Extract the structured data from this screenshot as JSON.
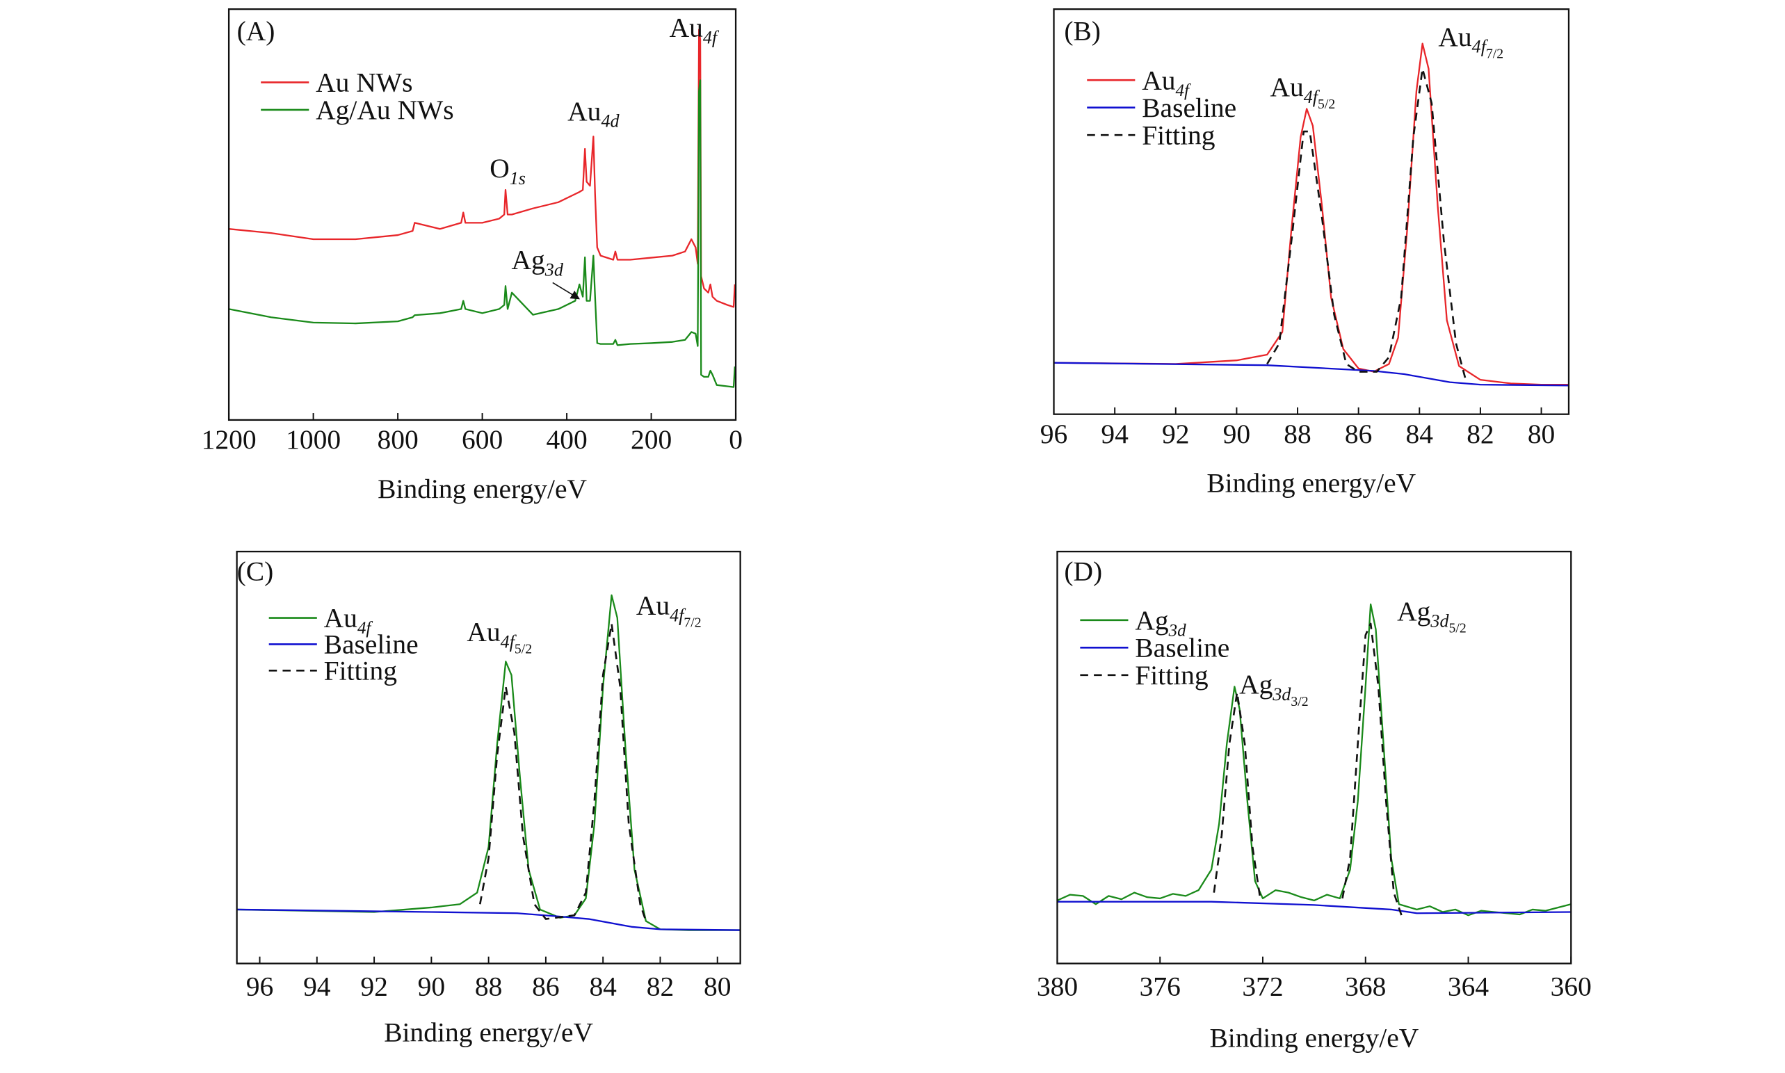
{
  "chart_data": [
    {
      "type": "line",
      "x_label": "Binding energy/eV",
      "xlim": [
        1200,
        0
      ],
      "xticks": [
        1200,
        1000,
        800,
        600,
        400,
        200,
        0
      ],
      "ylim": [
        0,
        100
      ],
      "annotations": [
        {
          "text": "(A)"
        },
        {
          "text": "Au",
          "sub": "4f"
        },
        {
          "text": "Au",
          "sub": "4d"
        },
        {
          "text": "O",
          "sub": "1s"
        },
        {
          "text": "Ag",
          "sub": "3d"
        }
      ],
      "series": [
        {
          "name": "Au NWs",
          "color": "#e8262a",
          "line_style": "solid",
          "x": [
            1200,
            1100,
            1000,
            900,
            800,
            765,
            760,
            700,
            650,
            645,
            640,
            600,
            560,
            548,
            545,
            540,
            530,
            480,
            420,
            380,
            370,
            362,
            357,
            353,
            345,
            337,
            333,
            328,
            320,
            290,
            285,
            280,
            250,
            200,
            150,
            120,
            105,
            95,
            90,
            87,
            84,
            82,
            75,
            65,
            60,
            55,
            45,
            20,
            5,
            2
          ],
          "values": [
            46.5,
            45.5,
            44,
            44,
            45,
            46,
            48,
            46.5,
            48,
            50.5,
            48,
            48,
            49,
            50,
            56,
            50,
            50,
            51.5,
            53,
            55,
            55.5,
            56,
            66,
            58,
            57,
            69,
            55,
            42,
            40,
            39,
            41,
            39,
            39,
            39.5,
            40,
            41,
            44,
            42,
            38,
            95,
            92.5,
            35,
            32,
            31,
            33,
            30,
            29,
            28,
            27.5,
            33
          ]
        },
        {
          "name": "Ag/Au NWs",
          "color": "#1a8a1a",
          "line_style": "solid",
          "x": [
            1200,
            1100,
            1000,
            900,
            800,
            765,
            760,
            700,
            650,
            645,
            640,
            600,
            560,
            548,
            545,
            540,
            530,
            480,
            420,
            380,
            370,
            362,
            357,
            353,
            345,
            337,
            333,
            328,
            320,
            290,
            285,
            280,
            250,
            200,
            150,
            120,
            105,
            95,
            90,
            87,
            84,
            82,
            75,
            65,
            60,
            55,
            45,
            20,
            5,
            2
          ],
          "values": [
            27,
            25,
            23.7,
            23.5,
            24,
            25,
            25.5,
            26,
            27,
            29,
            27,
            26,
            27,
            28,
            32.6,
            27,
            31,
            25.6,
            27,
            29,
            33,
            30,
            39.6,
            29,
            29,
            40,
            30,
            18.7,
            18.5,
            18.5,
            19.5,
            18.2,
            18.5,
            18.7,
            19,
            19.5,
            21.4,
            21,
            18,
            80,
            82.7,
            11,
            10.5,
            10.5,
            12,
            11,
            8.5,
            8.2,
            8,
            13
          ]
        }
      ]
    },
    {
      "type": "line",
      "x_label": "Binding energy/eV",
      "xlim": [
        96,
        79.1
      ],
      "xticks": [
        96,
        94,
        92,
        90,
        88,
        86,
        84,
        82,
        80
      ],
      "ylim": [
        0,
        100
      ],
      "annotations": [
        {
          "text": "(B)"
        },
        {
          "text": "Au",
          "sub": "4f",
          "sub2": "5/2"
        },
        {
          "text": "Au",
          "sub": "4f",
          "sub2": "7/2"
        }
      ],
      "series": [
        {
          "name": "Au",
          "name_sub": "4f",
          "color": "#e8262a",
          "line_style": "solid",
          "x": [
            96,
            92,
            90,
            89,
            88.5,
            88.2,
            87.9,
            87.7,
            87.5,
            87.2,
            86.9,
            86.5,
            86,
            85.5,
            85,
            84.7,
            84.4,
            84.1,
            83.9,
            83.7,
            83.4,
            83.1,
            82.7,
            82,
            81,
            80,
            79.1
          ],
          "values": [
            12.7,
            12.4,
            13.3,
            14.7,
            20.3,
            45.8,
            68.4,
            75.4,
            71.2,
            51.4,
            28.8,
            16.1,
            11.3,
            10.5,
            12.4,
            18.9,
            45.8,
            79.7,
            91.5,
            85.3,
            51.4,
            23.2,
            11.9,
            8.5,
            7.6,
            7.3,
            7.3
          ]
        },
        {
          "name": "Baseline",
          "color": "#1010d0",
          "line_style": "solid",
          "x": [
            96,
            89,
            87,
            85.5,
            84.5,
            83,
            82,
            79.1
          ],
          "values": [
            12.7,
            12.1,
            11.3,
            10.7,
            9.9,
            7.9,
            7.3,
            7.1
          ]
        },
        {
          "name": "Fitting",
          "color": "#111111",
          "line_style": "dashed",
          "x": [
            89,
            88.6,
            88.2,
            87.8,
            87.6,
            87.2,
            86.8,
            86.4,
            86,
            85.4,
            85,
            84.6,
            84.2,
            83.9,
            83.6,
            83.2,
            82.8,
            82.5
          ],
          "values": [
            12.4,
            17.5,
            42.9,
            69.8,
            69.8,
            48.6,
            24.6,
            12.4,
            10.5,
            10.5,
            14.1,
            28.8,
            68.4,
            85.3,
            76.8,
            42.9,
            17.5,
            9
          ]
        }
      ]
    },
    {
      "type": "line",
      "x_label": "Binding energy/eV",
      "xlim": [
        96.8,
        79.2
      ],
      "xticks": [
        96,
        94,
        92,
        90,
        88,
        86,
        84,
        82,
        80
      ],
      "ylim": [
        0,
        100
      ],
      "annotations": [
        {
          "text": "(C)"
        },
        {
          "text": "Au",
          "sub": "4f",
          "sub2": "5/2"
        },
        {
          "text": "Au",
          "sub": "4f",
          "sub2": "7/2"
        }
      ],
      "series": [
        {
          "name": "Au",
          "name_sub": "4f",
          "color": "#1a8a1a",
          "line_style": "solid",
          "x": [
            96.8,
            92,
            90,
            89,
            88.4,
            88,
            87.7,
            87.4,
            87.2,
            86.9,
            86.6,
            86.2,
            85.5,
            85,
            84.6,
            84.3,
            84,
            83.7,
            83.5,
            83.2,
            82.9,
            82.5,
            82,
            81,
            79.2
          ],
          "values": [
            13.1,
            12.5,
            13.6,
            14.4,
            17.2,
            28.3,
            53.3,
            73.3,
            70,
            45,
            22.8,
            13.1,
            11.1,
            11.7,
            15.8,
            33.9,
            67.2,
            89.4,
            83.9,
            50.6,
            22.8,
            10.3,
            8.3,
            8.1,
            8.1
          ]
        },
        {
          "name": "Baseline",
          "color": "#1010d0",
          "line_style": "solid",
          "x": [
            96.8,
            90,
            87,
            85.5,
            84.5,
            83,
            82,
            79.2
          ],
          "values": [
            13.1,
            12.5,
            12.2,
            11.4,
            10.8,
            8.9,
            8.3,
            8.1
          ]
        },
        {
          "name": "Fitting",
          "color": "#111111",
          "line_style": "dashed",
          "x": [
            88.3,
            88,
            87.7,
            87.4,
            87.1,
            86.8,
            86.4,
            86,
            85,
            84.6,
            84.3,
            84,
            83.7,
            83.4,
            83.1,
            82.7,
            82.5
          ],
          "values": [
            14.4,
            25.6,
            50.6,
            67.2,
            56.1,
            31.1,
            14.4,
            10.8,
            11.7,
            17.2,
            39.4,
            70,
            82.5,
            67.2,
            33.9,
            14.4,
            10.3
          ]
        }
      ]
    },
    {
      "type": "line",
      "x_label": "Binding energy/eV",
      "xlim": [
        380,
        360
      ],
      "xticks": [
        380,
        376,
        372,
        368,
        364,
        360
      ],
      "ylim": [
        0,
        100
      ],
      "annotations": [
        {
          "text": "(D)"
        },
        {
          "text": "Ag",
          "sub": "3d",
          "sub2": "3/2"
        },
        {
          "text": "Ag",
          "sub": "3d",
          "sub2": "5/2"
        }
      ],
      "series": [
        {
          "name": "Ag",
          "name_sub": "3d",
          "color": "#1a8a1a",
          "line_style": "solid",
          "x": [
            380,
            379.5,
            379,
            378.5,
            378,
            377.5,
            377,
            376.5,
            376,
            375.5,
            375,
            374.5,
            374,
            373.7,
            373.4,
            373.1,
            372.9,
            372.6,
            372.3,
            372,
            371.5,
            371,
            370.5,
            370,
            369.5,
            369,
            368.6,
            368.3,
            368,
            367.8,
            367.6,
            367.3,
            367,
            366.7,
            366,
            365.5,
            365,
            364.5,
            364,
            363.5,
            363,
            362.5,
            362,
            361.5,
            361,
            360.5,
            360
          ],
          "values": [
            15.3,
            16.7,
            16.4,
            14.4,
            16.4,
            15.6,
            17.2,
            16.1,
            15.8,
            16.9,
            16.4,
            17.8,
            22.8,
            33.9,
            53.3,
            67.2,
            61.7,
            39.4,
            20,
            15.8,
            17.8,
            17.2,
            16.1,
            15.3,
            16.7,
            15.8,
            22.8,
            39.4,
            67.2,
            87.2,
            81.1,
            53.3,
            25.6,
            14.4,
            13.1,
            13.9,
            12.5,
            13.1,
            11.7,
            12.8,
            12.5,
            12.2,
            11.9,
            13.1,
            12.8,
            13.6,
            14.4
          ]
        },
        {
          "name": "Baseline",
          "color": "#1010d0",
          "line_style": "solid",
          "x": [
            380,
            374,
            370,
            367,
            366,
            360
          ],
          "values": [
            15,
            15,
            14.2,
            13.1,
            12.2,
            12.5
          ]
        },
        {
          "name": "Fitting",
          "color": "#111111",
          "line_style": "dashed",
          "x": [
            373.9,
            373.6,
            373.3,
            373,
            372.7,
            372.4,
            372.1,
            370.5,
            368.9,
            368.6,
            368.3,
            368,
            367.8,
            367.5,
            367.2,
            366.9,
            366.6
          ],
          "values": [
            17.2,
            31.1,
            53.3,
            65.8,
            53.3,
            28.3,
            15.8,
            null,
            15.8,
            25.6,
            53.3,
            79.7,
            82.5,
            67.2,
            39.4,
            17.2,
            11.7
          ]
        }
      ]
    }
  ]
}
